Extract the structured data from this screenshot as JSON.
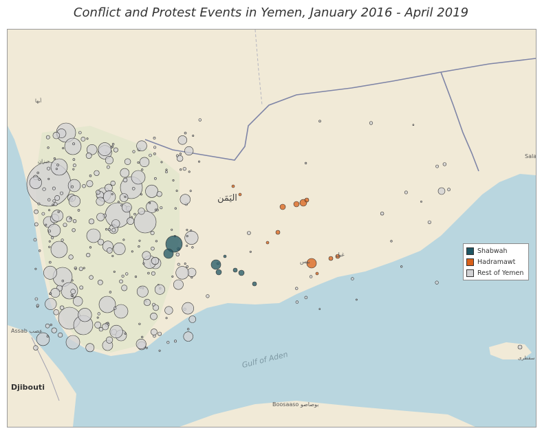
{
  "title": "Conflict and Protest Events in Yemen, January 2016 - April 2019",
  "map": {
    "labels": {
      "country": "اليَمَن",
      "gulf": "Gulf of Aden",
      "djibouti": "Djibouti",
      "assab": "Assab عصب",
      "boosaaso": "Boosaaso بوصاصو",
      "salalah": "Sala",
      "mukalla": "بيس",
      "ash_shihr": "غيل",
      "socotra": "سقطرى",
      "jizan": "جيزان",
      "abha": "أبها"
    },
    "colors": {
      "sea": "#b9d6df",
      "land_desert": "#f1ead7",
      "land_green": "#e3e6cc",
      "border": "#7e84a6",
      "shabwah": "#1f5663",
      "hadramawt": "#d9611a",
      "rest": "#d2d2d4"
    }
  },
  "legend": {
    "items": [
      {
        "label": "Shabwah",
        "color": "#1f5663"
      },
      {
        "label": "Hadramawt",
        "color": "#d9611a"
      },
      {
        "label": "Rest of Yemen",
        "color": "#d2d2d4"
      }
    ]
  }
}
